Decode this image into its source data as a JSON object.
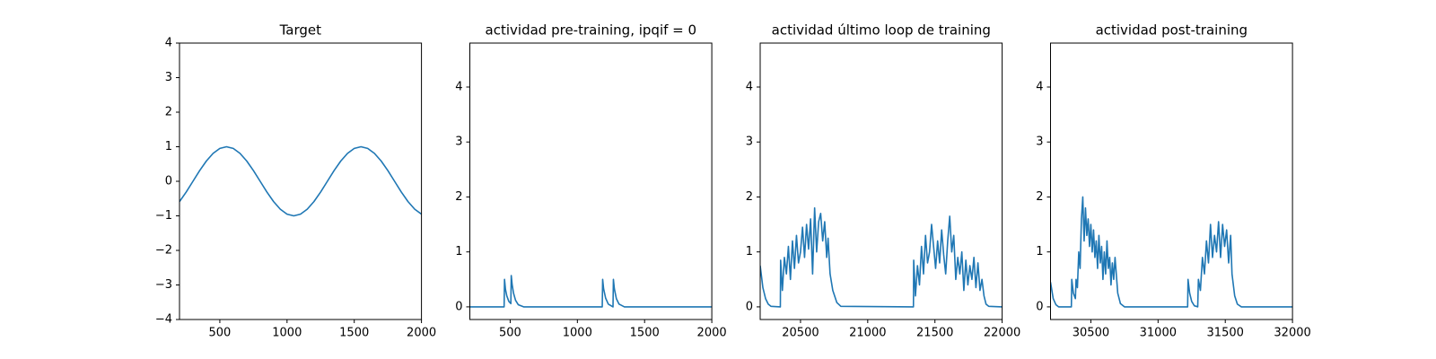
{
  "chart_data": [
    {
      "type": "line",
      "title": "Target",
      "color": "#1f77b4",
      "x": [
        200,
        250,
        300,
        350,
        400,
        450,
        500,
        550,
        600,
        650,
        700,
        750,
        800,
        850,
        900,
        950,
        1000,
        1050,
        1100,
        1150,
        1200,
        1250,
        1300,
        1350,
        1400,
        1450,
        1500,
        1550,
        1600,
        1650,
        1700,
        1750,
        1800,
        1850,
        1900,
        1950,
        2000
      ],
      "values": [
        -0.588,
        -0.309,
        0,
        0.309,
        0.588,
        0.809,
        0.951,
        1,
        0.951,
        0.809,
        0.588,
        0.309,
        0,
        -0.309,
        -0.588,
        -0.809,
        -0.951,
        -1,
        -0.951,
        -0.809,
        -0.588,
        -0.309,
        0,
        0.309,
        0.588,
        0.809,
        0.951,
        1,
        0.951,
        0.809,
        0.588,
        0.309,
        0,
        -0.309,
        -0.588,
        -0.809,
        -0.951
      ],
      "xlim": [
        200,
        2000
      ],
      "xticks": [
        500,
        1000,
        1500,
        2000
      ],
      "ylim": [
        -4,
        4
      ],
      "yticks": [
        {
          "value": -4,
          "label": "−4"
        },
        {
          "value": -3,
          "label": "−3"
        },
        {
          "value": -2,
          "label": "−2"
        },
        {
          "value": -1,
          "label": "−1"
        },
        0,
        1,
        2,
        3,
        4
      ]
    },
    {
      "type": "line",
      "title": "actividad pre-training, ipqif = 0",
      "color": "#1f77b4",
      "x": [
        200,
        455,
        458,
        465,
        475,
        490,
        505,
        508,
        515,
        525,
        540,
        560,
        600,
        1185,
        1188,
        1195,
        1210,
        1230,
        1265,
        1268,
        1275,
        1290,
        1310,
        1350,
        2000
      ],
      "values": [
        0,
        0,
        0.5,
        0.32,
        0.2,
        0.1,
        0.06,
        0.57,
        0.4,
        0.25,
        0.12,
        0.04,
        0,
        0,
        0.5,
        0.33,
        0.16,
        0.05,
        0,
        0.5,
        0.33,
        0.15,
        0.05,
        0,
        0
      ],
      "xlim": [
        200,
        2000
      ],
      "xticks": [
        500,
        1000,
        1500,
        2000
      ],
      "ylim": [
        -0.23,
        4.8
      ],
      "yticks": [
        0,
        1,
        2,
        3,
        4
      ]
    },
    {
      "type": "line",
      "title": "actividad último loop de training",
      "color": "#1f77b4",
      "x": [
        20200,
        20220,
        20240,
        20260,
        20280,
        20350,
        20352,
        20365,
        20380,
        20395,
        20410,
        20425,
        20440,
        20455,
        20470,
        20485,
        20500,
        20515,
        20530,
        20545,
        20560,
        20575,
        20590,
        20605,
        20620,
        20635,
        20650,
        20665,
        20680,
        20695,
        20705,
        20720,
        20740,
        20770,
        20800,
        21340,
        21342,
        21355,
        21370,
        21385,
        21400,
        21415,
        21430,
        21445,
        21460,
        21475,
        21490,
        21505,
        21520,
        21535,
        21550,
        21565,
        21580,
        21595,
        21610,
        21625,
        21640,
        21655,
        21670,
        21685,
        21700,
        21715,
        21730,
        21745,
        21760,
        21775,
        21790,
        21805,
        21820,
        21835,
        21850,
        21865,
        21880,
        21900,
        22000
      ],
      "values": [
        0.75,
        0.35,
        0.15,
        0.05,
        0.01,
        0,
        0.85,
        0.3,
        0.9,
        0.6,
        1.1,
        0.5,
        1.2,
        0.7,
        1.3,
        0.8,
        1.0,
        1.45,
        0.9,
        1.5,
        1.05,
        1.6,
        0.6,
        1.8,
        1.0,
        1.55,
        1.7,
        1.2,
        1.55,
        0.9,
        1.25,
        0.6,
        0.3,
        0.08,
        0.01,
        0,
        0.85,
        0.2,
        0.75,
        0.4,
        1.1,
        0.6,
        1.3,
        0.8,
        1.0,
        1.5,
        1.1,
        0.7,
        1.2,
        0.8,
        1.4,
        0.95,
        0.6,
        1.2,
        1.65,
        1.0,
        1.3,
        0.5,
        0.9,
        0.6,
        1.0,
        0.3,
        0.85,
        0.4,
        0.75,
        0.5,
        0.9,
        0.35,
        0.8,
        0.3,
        0.5,
        0.2,
        0.05,
        0.01,
        0
      ],
      "xlim": [
        20200,
        22000
      ],
      "xticks": [
        20500,
        21000,
        21500,
        22000
      ],
      "ylim": [
        -0.23,
        4.8
      ],
      "yticks": [
        0,
        1,
        2,
        3,
        4
      ]
    },
    {
      "type": "line",
      "title": "actividad post-training",
      "color": "#1f77b4",
      "x": [
        30200,
        30220,
        30240,
        30260,
        30355,
        30358,
        30370,
        30385,
        30390,
        30400,
        30410,
        30420,
        30430,
        30440,
        30450,
        30460,
        30470,
        30480,
        30490,
        30500,
        30510,
        30520,
        30530,
        30540,
        30550,
        30560,
        30570,
        30580,
        30590,
        30600,
        30610,
        30620,
        30630,
        30640,
        30650,
        30660,
        30670,
        30680,
        30700,
        30720,
        30750,
        31220,
        31223,
        31235,
        31250,
        31270,
        31295,
        31300,
        31315,
        31330,
        31345,
        31360,
        31375,
        31390,
        31405,
        31420,
        31435,
        31450,
        31465,
        31480,
        31495,
        31510,
        31525,
        31540,
        31550,
        31570,
        31590,
        31620,
        32000
      ],
      "values": [
        0.45,
        0.15,
        0.04,
        0,
        0,
        0.5,
        0.25,
        0.15,
        0.5,
        0.35,
        1.0,
        0.7,
        1.6,
        2.0,
        1.2,
        1.8,
        1.3,
        1.6,
        1.1,
        1.5,
        1.0,
        1.4,
        0.9,
        1.2,
        0.7,
        1.3,
        0.8,
        1.1,
        0.5,
        1.0,
        0.6,
        1.2,
        0.7,
        0.9,
        0.4,
        0.8,
        0.5,
        0.9,
        0.25,
        0.06,
        0,
        0,
        0.5,
        0.25,
        0.1,
        0.02,
        0,
        0.5,
        0.3,
        0.9,
        0.6,
        1.2,
        0.8,
        1.5,
        0.9,
        1.3,
        1.0,
        1.55,
        0.9,
        1.5,
        1.1,
        1.4,
        0.8,
        1.3,
        0.6,
        0.2,
        0.05,
        0,
        0
      ],
      "xlim": [
        30200,
        32000
      ],
      "xticks": [
        30500,
        31000,
        31500,
        32000
      ],
      "ylim": [
        -0.23,
        4.8
      ],
      "yticks": [
        0,
        1,
        2,
        3,
        4
      ]
    }
  ]
}
